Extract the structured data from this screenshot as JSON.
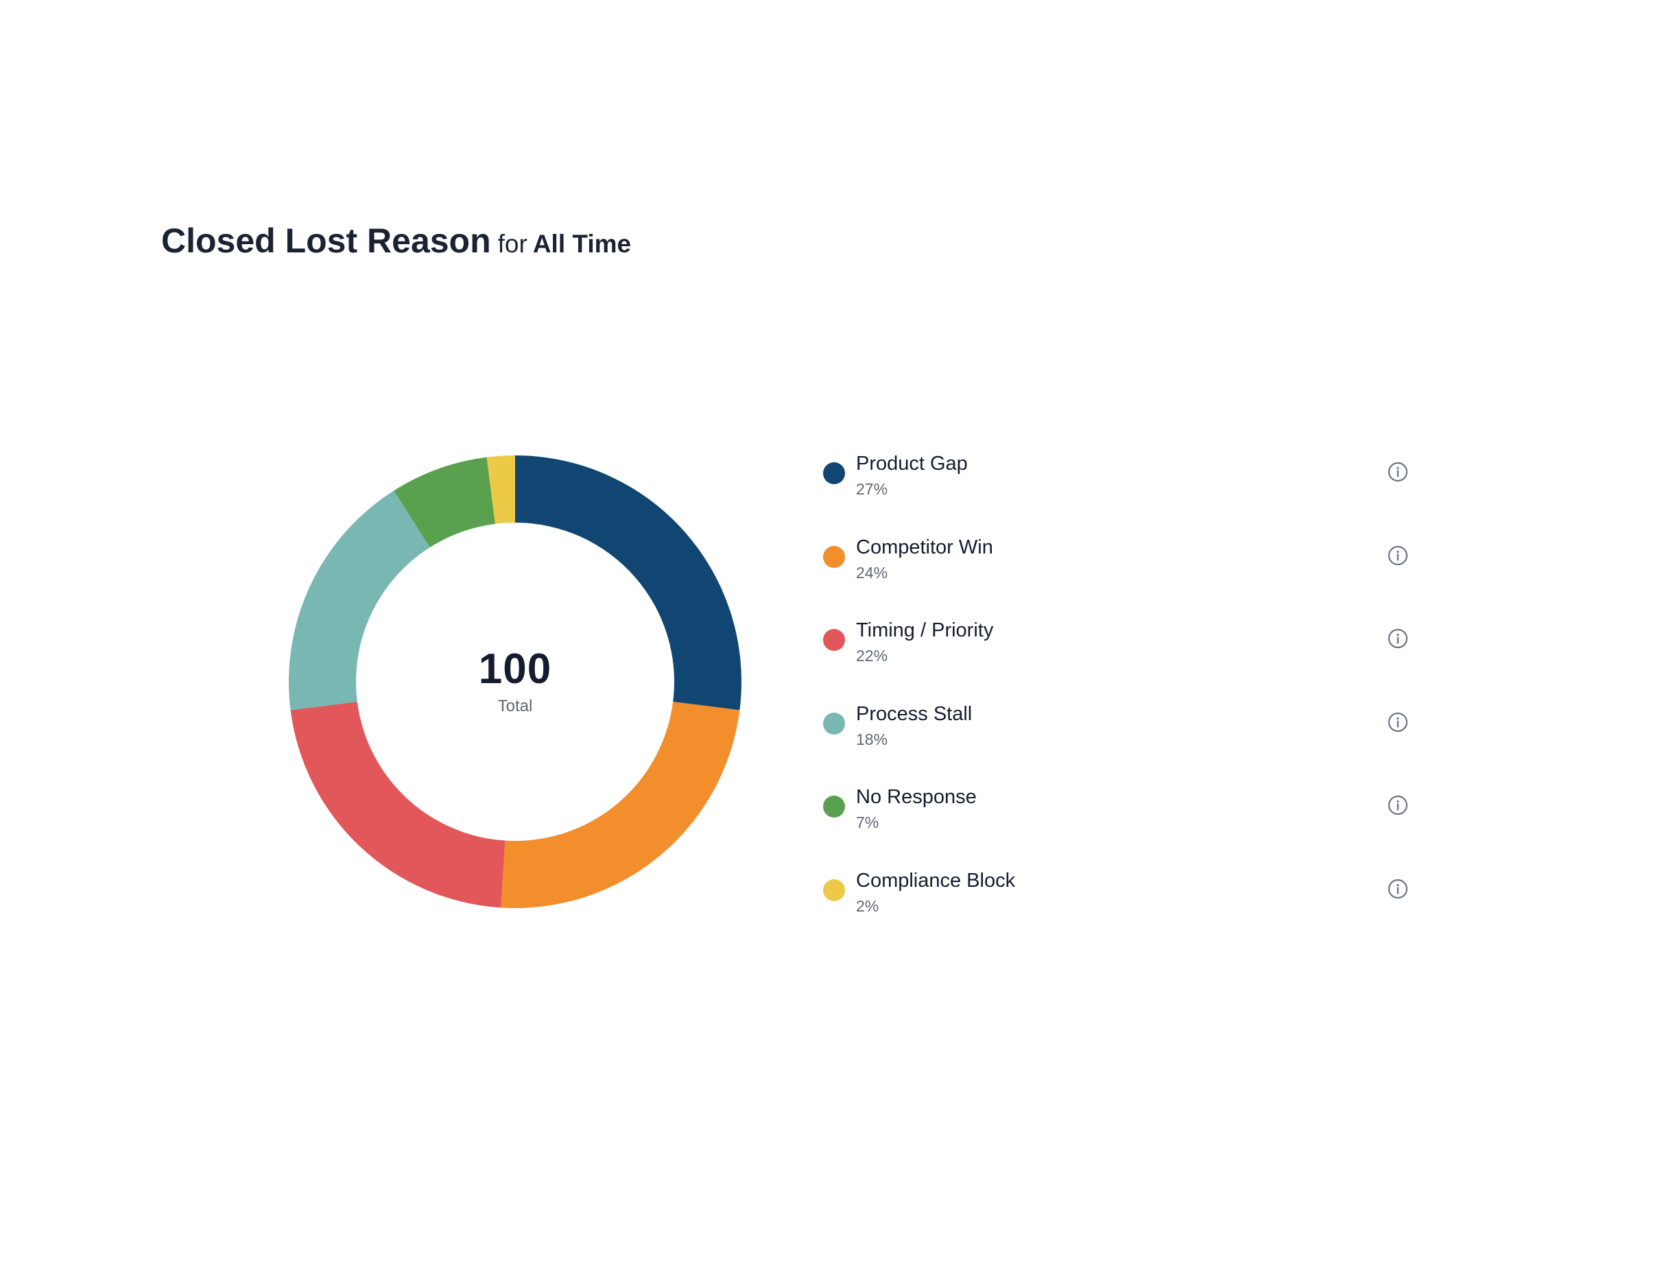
{
  "header": {
    "title": "Closed Lost Reason",
    "for_word": "for",
    "range": "All Time"
  },
  "center": {
    "value": "100",
    "label": "Total"
  },
  "info_icon": "info-circle-icon",
  "chart_data": {
    "type": "pie",
    "subtype": "donut",
    "title": "Closed Lost Reason for All Time",
    "total": 100,
    "categories": [
      "Product Gap",
      "Competitor Win",
      "Timing / Priority",
      "Process Stall",
      "No Response",
      "Compliance Block"
    ],
    "values": [
      27,
      24,
      22,
      18,
      7,
      2
    ],
    "percent_labels": [
      "27%",
      "24%",
      "22%",
      "18%",
      "7%",
      "2%"
    ],
    "colors": [
      "#114572",
      "#f28e2c",
      "#e1575a",
      "#79b7b2",
      "#59a14f",
      "#edc948"
    ],
    "legend_position": "right"
  }
}
